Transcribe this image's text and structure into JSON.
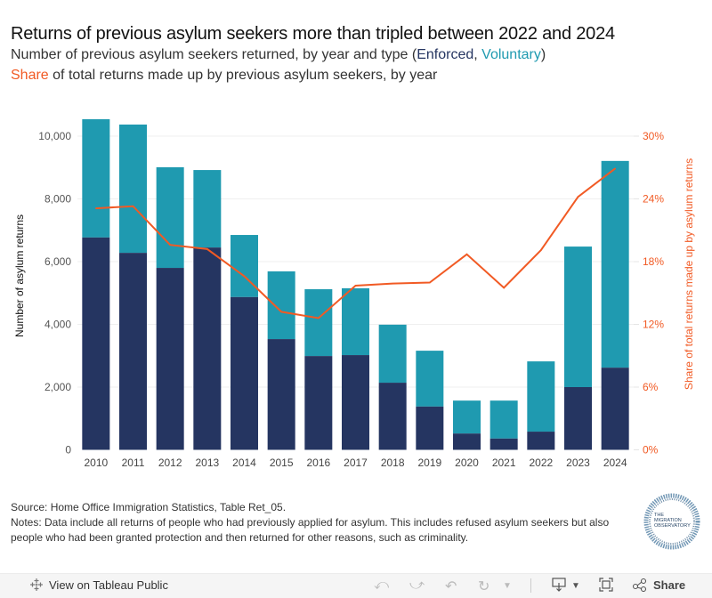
{
  "header": {
    "title": "Returns of previous asylum seekers more than tripled between 2022 and 2024",
    "subtitle1_prefix": "Number of previous asylum seekers returned, by year and type (",
    "subtitle1_enforced": "Enforced",
    "subtitle1_sep": ", ",
    "subtitle1_voluntary": "Voluntary",
    "subtitle1_suffix": ")",
    "subtitle2_share": "Share",
    "subtitle2_rest": " of total returns made up by previous asylum seekers, by year"
  },
  "colors": {
    "enforced": "#253561",
    "voluntary": "#1f9ab0",
    "share": "#f15a24",
    "grid": "#efefef"
  },
  "chart_data": {
    "type": "bar",
    "stacked": true,
    "title": "Returns of previous asylum seekers more than tripled between 2022 and 2024",
    "categories": [
      "2010",
      "2011",
      "2012",
      "2013",
      "2014",
      "2015",
      "2016",
      "2017",
      "2018",
      "2019",
      "2020",
      "2021",
      "2022",
      "2023",
      "2024"
    ],
    "series": [
      {
        "name": "Enforced",
        "axis": "left",
        "type": "bar",
        "values": [
          6770,
          6280,
          5800,
          6450,
          4870,
          3530,
          2990,
          3020,
          2140,
          1380,
          520,
          360,
          580,
          2000,
          2620
        ]
      },
      {
        "name": "Voluntary",
        "axis": "left",
        "type": "bar",
        "values": [
          3770,
          4090,
          3210,
          2470,
          1980,
          2160,
          2130,
          2130,
          1850,
          1780,
          1050,
          1210,
          2240,
          4480,
          6590
        ]
      },
      {
        "name": "Share",
        "axis": "right",
        "type": "line",
        "unit": "%",
        "values": [
          23.1,
          23.3,
          19.6,
          19.2,
          16.6,
          13.2,
          12.6,
          15.7,
          15.9,
          16.0,
          18.7,
          15.5,
          19.1,
          24.2,
          26.9
        ]
      }
    ],
    "ylabel": "Number of asylum returns",
    "ylim": [
      0,
      10000
    ],
    "yticks": [
      0,
      2000,
      4000,
      6000,
      8000,
      10000
    ],
    "ytick_labels": [
      "0",
      "2,000",
      "4,000",
      "6,000",
      "8,000",
      "10,000"
    ],
    "y2label": "Share  of total returns made up by asylum returns",
    "y2lim": [
      0,
      30
    ],
    "y2ticks": [
      0,
      6,
      12,
      18,
      24,
      30
    ],
    "y2tick_labels": [
      "0%",
      "6%",
      "12%",
      "18%",
      "24%",
      "30%"
    ],
    "grid": true,
    "legend": "in subtitle"
  },
  "footer": {
    "source": "Source: Home Office Immigration Statistics, Table Ret_05.",
    "notes": "Notes: Data include all returns of people who had previously applied for asylum. This includes refused asylum seekers but also people who had been granted protection and then returned for other reasons, such as criminality.",
    "logo_line1": "THE",
    "logo_line2": "MIGRATION",
    "logo_line3": "OBSERVATORY"
  },
  "toolbar": {
    "view_label": "View on Tableau Public",
    "share_label": "Share",
    "icons": [
      "tableau-logo-icon",
      "undo-icon",
      "redo-icon",
      "revert-icon",
      "refresh-icon",
      "download-icon",
      "fullscreen-icon",
      "share-icon"
    ]
  }
}
